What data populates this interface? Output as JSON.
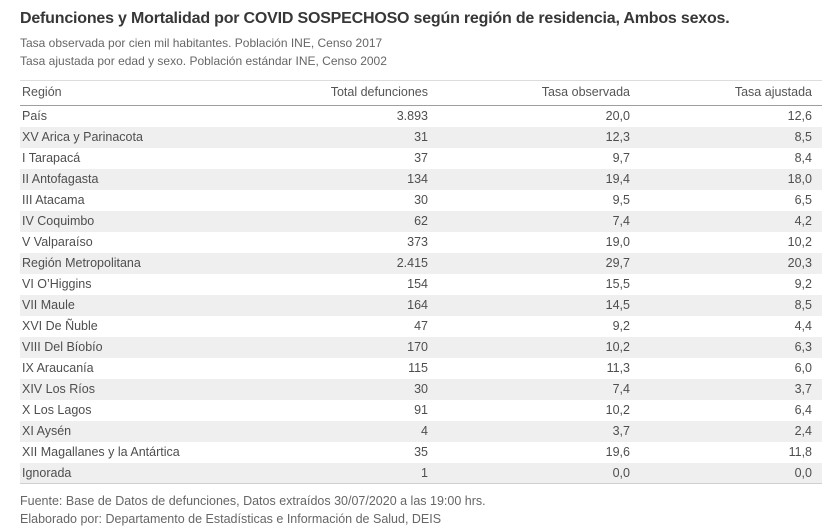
{
  "header": {
    "title": "Defunciones y Mortalidad por COVID SOSPECHOSO según región de residencia, Ambos sexos.",
    "subtitle_observed": "Tasa observada por cien mil habitantes. Población INE, Censo 2017",
    "subtitle_adjusted": "Tasa ajustada por edad y sexo. Población estándar INE, Censo 2002"
  },
  "table": {
    "columns": [
      "Región",
      "Total defunciones",
      "Tasa observada",
      "Tasa ajustada"
    ],
    "rows": [
      {
        "region": "País",
        "total": "3.893",
        "observada": "20,0",
        "ajustada": "12,6"
      },
      {
        "region": "XV Arica y Parinacota",
        "total": "31",
        "observada": "12,3",
        "ajustada": "8,5"
      },
      {
        "region": "I Tarapacá",
        "total": "37",
        "observada": "9,7",
        "ajustada": "8,4"
      },
      {
        "region": "II Antofagasta",
        "total": "134",
        "observada": "19,4",
        "ajustada": "18,0"
      },
      {
        "region": "III Atacama",
        "total": "30",
        "observada": "9,5",
        "ajustada": "6,5"
      },
      {
        "region": "IV Coquimbo",
        "total": "62",
        "observada": "7,4",
        "ajustada": "4,2"
      },
      {
        "region": "V Valparaíso",
        "total": "373",
        "observada": "19,0",
        "ajustada": "10,2"
      },
      {
        "region": "Región Metropolitana",
        "total": "2.415",
        "observada": "29,7",
        "ajustada": "20,3"
      },
      {
        "region": "VI O’Higgins",
        "total": "154",
        "observada": "15,5",
        "ajustada": "9,2"
      },
      {
        "region": "VII Maule",
        "total": "164",
        "observada": "14,5",
        "ajustada": "8,5"
      },
      {
        "region": "XVI De Ñuble",
        "total": "47",
        "observada": "9,2",
        "ajustada": "4,4"
      },
      {
        "region": "VIII Del Bíobío",
        "total": "170",
        "observada": "10,2",
        "ajustada": "6,3"
      },
      {
        "region": "IX Araucanía",
        "total": "115",
        "observada": "11,3",
        "ajustada": "6,0"
      },
      {
        "region": "XIV Los Ríos",
        "total": "30",
        "observada": "7,4",
        "ajustada": "3,7"
      },
      {
        "region": "X Los Lagos",
        "total": "91",
        "observada": "10,2",
        "ajustada": "6,4"
      },
      {
        "region": "XI Aysén",
        "total": "4",
        "observada": "3,7",
        "ajustada": "2,4"
      },
      {
        "region": "XII Magallanes y la Antártica",
        "total": "35",
        "observada": "19,6",
        "ajustada": "11,8"
      },
      {
        "region": "Ignorada",
        "total": "1",
        "observada": "0,0",
        "ajustada": "0,0"
      }
    ]
  },
  "chart_data": {
    "type": "table",
    "title": "Defunciones y Mortalidad por COVID SOSPECHOSO según región de residencia, Ambos sexos.",
    "subtitles": [
      "Tasa observada por cien mil habitantes. Población INE, Censo 2017",
      "Tasa ajustada por edad y sexo. Población estándar INE, Censo 2002"
    ],
    "columns": [
      "Región",
      "Total defunciones",
      "Tasa observada",
      "Tasa ajustada"
    ],
    "rows": [
      [
        "País",
        3893,
        20.0,
        12.6
      ],
      [
        "XV Arica y Parinacota",
        31,
        12.3,
        8.5
      ],
      [
        "I Tarapacá",
        37,
        9.7,
        8.4
      ],
      [
        "II Antofagasta",
        134,
        19.4,
        18.0
      ],
      [
        "III Atacama",
        30,
        9.5,
        6.5
      ],
      [
        "IV Coquimbo",
        62,
        7.4,
        4.2
      ],
      [
        "V Valparaíso",
        373,
        19.0,
        10.2
      ],
      [
        "Región Metropolitana",
        2415,
        29.7,
        20.3
      ],
      [
        "VI O’Higgins",
        154,
        15.5,
        9.2
      ],
      [
        "VII Maule",
        164,
        14.5,
        8.5
      ],
      [
        "XVI De Ñuble",
        47,
        9.2,
        4.4
      ],
      [
        "VIII Del Bíobío",
        170,
        10.2,
        6.3
      ],
      [
        "IX Araucanía",
        115,
        11.3,
        6.0
      ],
      [
        "XIV Los Ríos",
        30,
        7.4,
        3.7
      ],
      [
        "X Los Lagos",
        91,
        10.2,
        6.4
      ],
      [
        "XI Aysén",
        4,
        3.7,
        2.4
      ],
      [
        "XII Magallanes y la Antártica",
        35,
        19.6,
        11.8
      ],
      [
        "Ignorada",
        1,
        0.0,
        0.0
      ]
    ],
    "number_format": "es-CL (miles con punto, decimales con coma)"
  },
  "footer": {
    "source": "Fuente: Base de Datos de defunciones, Datos extraídos 30/07/2020 a las 19:00 hrs.",
    "elaborated": "Elaborado por: Departamento de Estadísticas e Información de Salud, DEIS"
  },
  "colors": {
    "background": "#ffffff",
    "title_text": "#373737",
    "muted_text": "#666666",
    "body_text": "#4e4e4e",
    "row_band": "#efefef",
    "header_underline": "#9e9e9e"
  }
}
